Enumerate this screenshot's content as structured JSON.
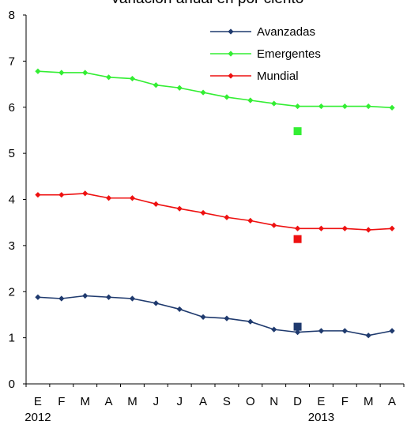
{
  "chart_data": {
    "type": "line",
    "title": "Variación anual en por ciento",
    "xlabel": "",
    "ylabel": "",
    "ylim": [
      0,
      8
    ],
    "yticks": [
      "0",
      "1",
      "2",
      "3",
      "4",
      "5",
      "6",
      "7",
      "8"
    ],
    "grid": false,
    "legend_position": "top-right",
    "categories": [
      "E",
      "F",
      "M",
      "A",
      "M",
      "J",
      "J",
      "A",
      "S",
      "O",
      "N",
      "D",
      "E",
      "F",
      "M",
      "A"
    ],
    "year_labels": [
      {
        "index": 0,
        "label": "2012"
      },
      {
        "index": 12,
        "label": "2013"
      }
    ],
    "series": [
      {
        "name": "Avanzadas",
        "color": "#1f3a6e",
        "values": [
          1.88,
          1.85,
          1.91,
          1.88,
          1.85,
          1.75,
          1.62,
          1.45,
          1.42,
          1.35,
          1.18,
          1.12,
          1.15,
          1.15,
          1.05,
          1.15
        ],
        "marker_point": {
          "index": 11,
          "value": 1.24
        }
      },
      {
        "name": "Emergentes",
        "color": "#33ee33",
        "values": [
          6.78,
          6.75,
          6.75,
          6.65,
          6.62,
          6.48,
          6.42,
          6.32,
          6.22,
          6.15,
          6.08,
          6.02,
          6.02,
          6.02,
          6.02,
          5.99
        ],
        "marker_point": {
          "index": 11,
          "value": 5.48
        }
      },
      {
        "name": "Mundial",
        "color": "#ee1111",
        "values": [
          4.1,
          4.1,
          4.13,
          4.03,
          4.03,
          3.9,
          3.8,
          3.71,
          3.61,
          3.54,
          3.44,
          3.37,
          3.37,
          3.37,
          3.34,
          3.37
        ],
        "marker_point": {
          "index": 11,
          "value": 3.14
        }
      }
    ]
  }
}
